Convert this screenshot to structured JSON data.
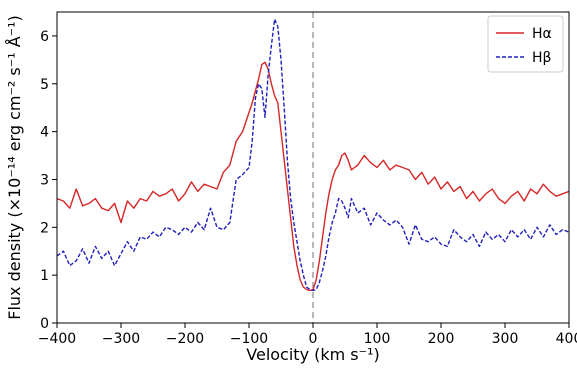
{
  "chart_data": {
    "type": "line",
    "xlabel": "Velocity (km s⁻¹)",
    "ylabel": "Flux density (×10⁻¹⁴ erg cm⁻² s⁻¹ Å⁻¹)",
    "xlim": [
      -400,
      400
    ],
    "ylim": [
      0,
      6.5
    ],
    "xticks": [
      -400,
      -300,
      -200,
      -100,
      0,
      100,
      200,
      300,
      400
    ],
    "yticks": [
      0,
      1,
      2,
      3,
      4,
      5,
      6
    ],
    "grid": false,
    "legend_position": "top-right",
    "reference_line": {
      "x": 0,
      "style": "dashed",
      "color": "#999999"
    },
    "series": [
      {
        "name": "Hα",
        "color": "#d62728",
        "style": "solid",
        "x": [
          -400,
          -390,
          -380,
          -370,
          -360,
          -350,
          -340,
          -330,
          -320,
          -310,
          -300,
          -290,
          -280,
          -270,
          -260,
          -250,
          -240,
          -230,
          -220,
          -210,
          -200,
          -190,
          -180,
          -170,
          -160,
          -150,
          -140,
          -130,
          -120,
          -110,
          -100,
          -95,
          -90,
          -85,
          -80,
          -75,
          -70,
          -65,
          -60,
          -55,
          -50,
          -45,
          -40,
          -35,
          -30,
          -25,
          -20,
          -15,
          -10,
          -5,
          0,
          5,
          10,
          15,
          20,
          25,
          30,
          35,
          40,
          45,
          50,
          55,
          60,
          70,
          80,
          90,
          100,
          110,
          120,
          130,
          140,
          150,
          160,
          170,
          180,
          190,
          200,
          210,
          220,
          230,
          240,
          250,
          260,
          270,
          280,
          290,
          300,
          310,
          320,
          330,
          340,
          350,
          360,
          370,
          380,
          390,
          400
        ],
        "values": [
          2.6,
          2.55,
          2.4,
          2.8,
          2.45,
          2.5,
          2.6,
          2.4,
          2.35,
          2.5,
          2.1,
          2.55,
          2.4,
          2.6,
          2.55,
          2.75,
          2.65,
          2.7,
          2.8,
          2.55,
          2.7,
          2.95,
          2.75,
          2.9,
          2.85,
          2.8,
          3.15,
          3.3,
          3.8,
          4.0,
          4.4,
          4.6,
          4.85,
          5.1,
          5.4,
          5.45,
          5.3,
          5.0,
          4.75,
          4.6,
          4.0,
          3.4,
          2.8,
          2.2,
          1.6,
          1.2,
          0.9,
          0.75,
          0.7,
          0.68,
          0.7,
          0.9,
          1.3,
          1.8,
          2.3,
          2.7,
          3.0,
          3.2,
          3.3,
          3.5,
          3.55,
          3.4,
          3.2,
          3.3,
          3.5,
          3.35,
          3.25,
          3.4,
          3.2,
          3.3,
          3.25,
          3.2,
          3.0,
          3.15,
          2.9,
          3.05,
          2.8,
          2.95,
          2.75,
          2.85,
          2.6,
          2.75,
          2.55,
          2.7,
          2.8,
          2.6,
          2.5,
          2.65,
          2.75,
          2.55,
          2.8,
          2.7,
          2.9,
          2.75,
          2.65,
          2.7,
          2.75
        ]
      },
      {
        "name": "Hβ",
        "color": "#1f1fbf",
        "style": "dashed",
        "x": [
          -400,
          -390,
          -380,
          -370,
          -360,
          -350,
          -340,
          -330,
          -320,
          -310,
          -300,
          -290,
          -280,
          -270,
          -260,
          -250,
          -240,
          -230,
          -220,
          -210,
          -200,
          -190,
          -180,
          -170,
          -160,
          -150,
          -140,
          -130,
          -120,
          -110,
          -100,
          -95,
          -90,
          -85,
          -80,
          -75,
          -70,
          -65,
          -60,
          -55,
          -50,
          -45,
          -40,
          -35,
          -30,
          -25,
          -20,
          -15,
          -10,
          -5,
          0,
          5,
          10,
          15,
          20,
          25,
          30,
          35,
          40,
          45,
          50,
          55,
          60,
          70,
          80,
          90,
          100,
          110,
          120,
          130,
          140,
          150,
          160,
          170,
          180,
          190,
          200,
          210,
          220,
          230,
          240,
          250,
          260,
          270,
          280,
          290,
          300,
          310,
          320,
          330,
          340,
          350,
          360,
          370,
          380,
          390,
          400
        ],
        "values": [
          1.4,
          1.5,
          1.2,
          1.3,
          1.55,
          1.25,
          1.6,
          1.35,
          1.5,
          1.2,
          1.45,
          1.7,
          1.5,
          1.8,
          1.75,
          1.9,
          1.8,
          2.0,
          1.95,
          1.85,
          2.0,
          1.9,
          2.1,
          1.95,
          2.4,
          2.0,
          1.95,
          2.1,
          3.0,
          3.1,
          3.25,
          3.8,
          4.7,
          5.0,
          4.9,
          4.3,
          5.2,
          5.8,
          6.35,
          6.2,
          5.5,
          4.5,
          3.4,
          2.6,
          2.1,
          1.7,
          1.3,
          1.0,
          0.75,
          0.7,
          0.68,
          0.7,
          0.85,
          1.1,
          1.4,
          1.8,
          2.1,
          2.3,
          2.6,
          2.55,
          2.4,
          2.2,
          2.6,
          2.3,
          2.4,
          2.05,
          2.3,
          2.15,
          2.05,
          2.15,
          2.0,
          1.65,
          2.05,
          1.75,
          1.7,
          1.8,
          1.65,
          1.6,
          1.95,
          1.8,
          1.7,
          1.85,
          1.6,
          1.9,
          1.75,
          1.85,
          1.7,
          1.95,
          1.8,
          1.95,
          1.75,
          2.0,
          1.8,
          2.05,
          1.85,
          1.95,
          1.9
        ]
      }
    ]
  }
}
